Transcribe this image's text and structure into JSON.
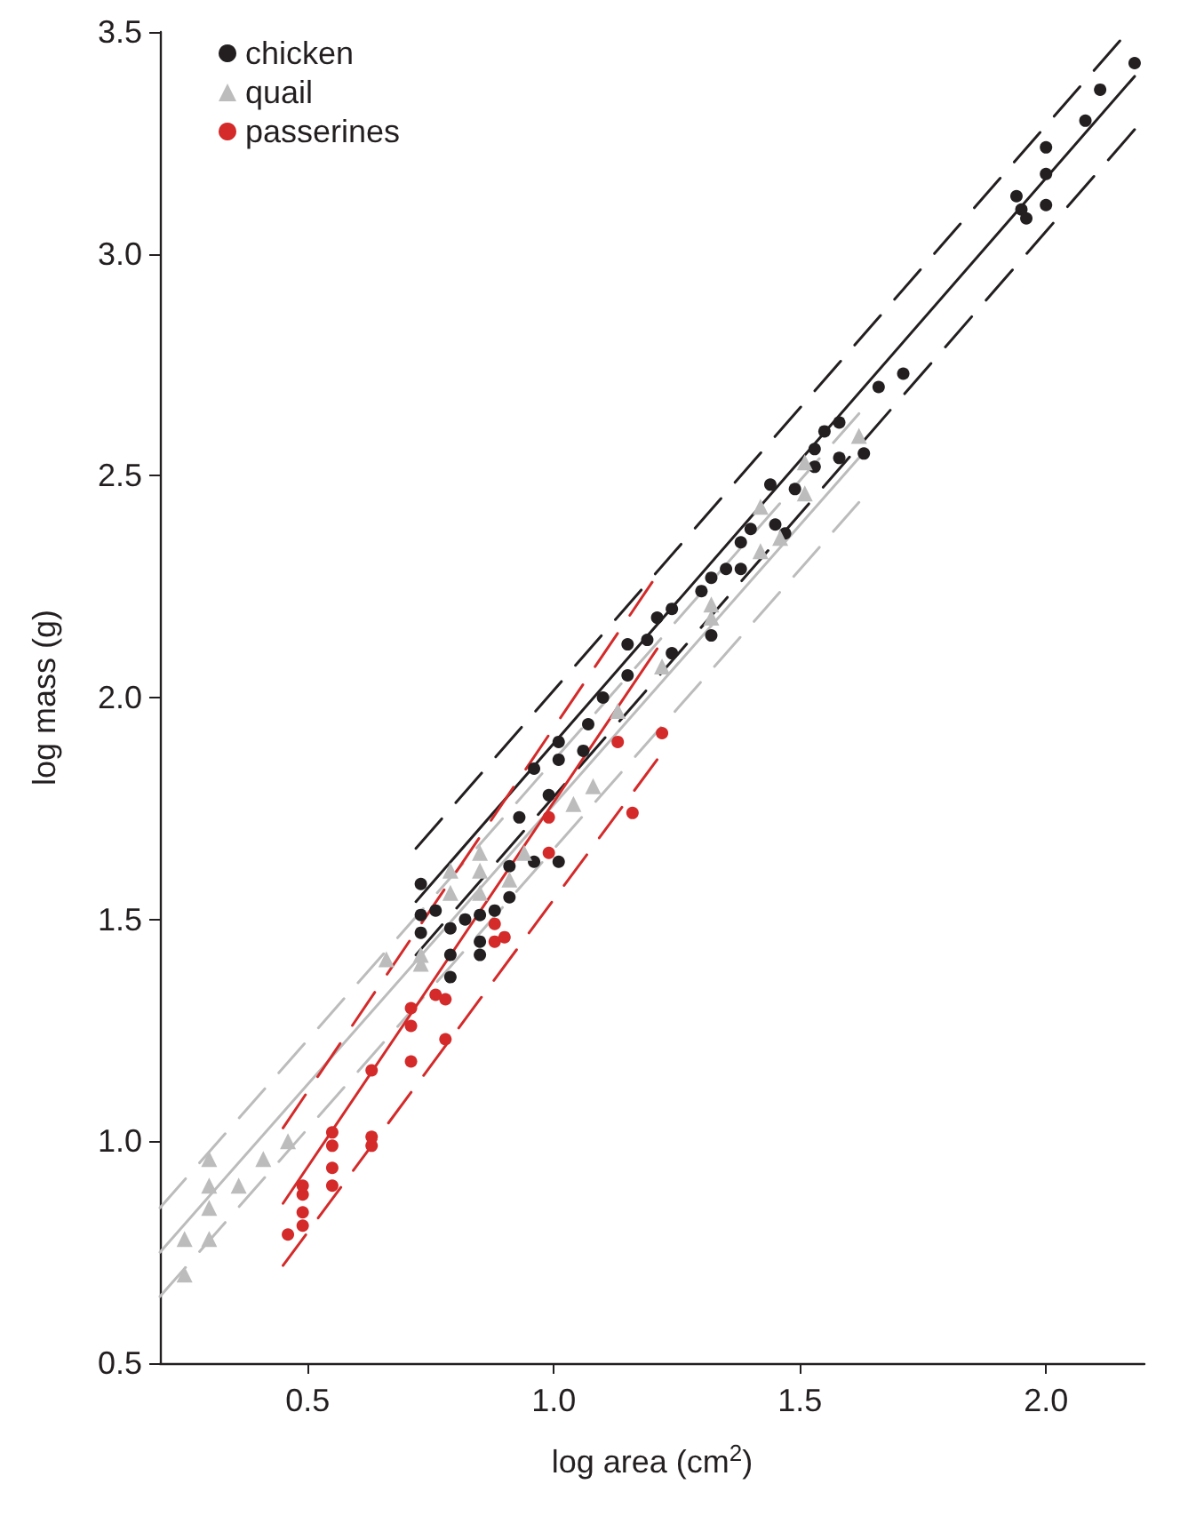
{
  "chart_data": {
    "type": "scatter",
    "xlabel": "log area (cm$^{2}$)",
    "ylabel": "log mass (g)",
    "xlim": [
      0.2,
      2.2
    ],
    "ylim": [
      0.5,
      3.5
    ],
    "xticks": [
      {
        "value": 0.5,
        "label": "0.5"
      },
      {
        "value": 1.0,
        "label": "1.0"
      },
      {
        "value": 1.5,
        "label": "1.5"
      },
      {
        "value": 2.0,
        "label": "2.0"
      }
    ],
    "yticks": [
      {
        "value": 0.5,
        "label": "0.5"
      },
      {
        "value": 1.0,
        "label": "1.0"
      },
      {
        "value": 1.5,
        "label": "1.5"
      },
      {
        "value": 2.0,
        "label": "2.0"
      },
      {
        "value": 2.5,
        "label": "2.5"
      },
      {
        "value": 3.0,
        "label": "3.0"
      },
      {
        "value": 3.5,
        "label": "3.5"
      }
    ],
    "grid": false,
    "legend": "top left",
    "series": [
      {
        "name": "chicken",
        "color": "#231f20",
        "marker": "circle",
        "x": [
          0.73,
          0.73,
          0.73,
          0.76,
          0.79,
          0.79,
          0.79,
          0.82,
          0.85,
          0.85,
          0.85,
          0.88,
          0.91,
          0.91,
          0.93,
          0.96,
          0.96,
          0.99,
          1.01,
          1.01,
          1.06,
          1.01,
          1.07,
          1.1,
          1.15,
          1.15,
          1.19,
          1.21,
          1.24,
          1.24,
          1.3,
          1.32,
          1.32,
          1.35,
          1.38,
          1.38,
          1.4,
          1.45,
          1.47,
          1.44,
          1.49,
          1.53,
          1.53,
          1.55,
          1.58,
          1.58,
          1.63,
          1.66,
          1.71,
          1.94,
          1.95,
          1.96,
          2.0,
          2.0,
          2.0,
          2.08,
          2.11,
          2.18
        ],
        "values": [
          1.58,
          1.51,
          1.47,
          1.52,
          1.48,
          1.42,
          1.37,
          1.5,
          1.51,
          1.45,
          1.42,
          1.52,
          1.55,
          1.62,
          1.73,
          1.84,
          1.63,
          1.78,
          1.63,
          1.86,
          1.88,
          1.9,
          1.94,
          2.0,
          2.05,
          2.12,
          2.13,
          2.18,
          2.2,
          2.1,
          2.24,
          2.27,
          2.14,
          2.29,
          2.35,
          2.29,
          2.38,
          2.39,
          2.37,
          2.48,
          2.47,
          2.56,
          2.52,
          2.6,
          2.62,
          2.54,
          2.55,
          2.7,
          2.73,
          3.13,
          3.1,
          3.08,
          3.24,
          3.18,
          3.11,
          3.3,
          3.37,
          3.43
        ]
      },
      {
        "name": "quail",
        "color": "#bcbcbc",
        "marker": "triangle",
        "x": [
          0.25,
          0.25,
          0.3,
          0.3,
          0.3,
          0.3,
          0.36,
          0.41,
          0.46,
          0.66,
          0.73,
          0.73,
          0.79,
          0.79,
          0.85,
          0.85,
          0.85,
          0.91,
          0.94,
          1.04,
          1.08,
          1.13,
          1.22,
          1.32,
          1.32,
          1.42,
          1.42,
          1.46,
          1.51,
          1.51,
          1.62
        ],
        "values": [
          0.78,
          0.7,
          0.96,
          0.9,
          0.85,
          0.78,
          0.9,
          0.96,
          1.0,
          1.41,
          1.4,
          1.42,
          1.61,
          1.56,
          1.65,
          1.61,
          1.56,
          1.59,
          1.65,
          1.76,
          1.8,
          1.97,
          2.07,
          2.21,
          2.18,
          2.43,
          2.33,
          2.36,
          2.53,
          2.46,
          2.59
        ]
      },
      {
        "name": "passerines",
        "color": "#d42a2a",
        "marker": "circle",
        "x": [
          0.46,
          0.49,
          0.49,
          0.49,
          0.49,
          0.55,
          0.55,
          0.55,
          0.55,
          0.63,
          0.63,
          0.63,
          0.71,
          0.71,
          0.71,
          0.76,
          0.78,
          0.78,
          0.88,
          0.88,
          0.9,
          0.99,
          0.99,
          1.13,
          1.16,
          1.22
        ],
        "values": [
          0.79,
          0.81,
          0.84,
          0.88,
          0.9,
          0.9,
          0.94,
          0.99,
          1.02,
          0.99,
          1.01,
          1.16,
          1.18,
          1.26,
          1.3,
          1.33,
          1.23,
          1.32,
          1.45,
          1.49,
          1.46,
          1.65,
          1.73,
          1.9,
          1.74,
          1.92
        ]
      },
      {
        "type": "line",
        "color": "#231f20",
        "marker": "none",
        "line_style": "solid",
        "x": [
          0.72,
          2.18
        ],
        "values": [
          1.54,
          3.4
        ]
      },
      {
        "type": "line",
        "color": "#231f20",
        "marker": "none",
        "line_style": "dashed",
        "x": [
          0.72,
          2.15
        ],
        "values": [
          1.66,
          3.48
        ]
      },
      {
        "type": "line",
        "color": "#231f20",
        "marker": "none",
        "line_style": "dashed",
        "x": [
          0.72,
          2.18
        ],
        "values": [
          1.42,
          3.28
        ]
      },
      {
        "type": "line",
        "color": "#bcbcbc",
        "marker": "none",
        "line_style": "solid",
        "x": [
          0.2,
          1.62
        ],
        "values": [
          0.75,
          2.54
        ]
      },
      {
        "type": "line",
        "color": "#bcbcbc",
        "marker": "none",
        "line_style": "dashed",
        "x": [
          0.2,
          1.62
        ],
        "values": [
          0.85,
          2.64
        ]
      },
      {
        "type": "line",
        "color": "#bcbcbc",
        "marker": "none",
        "line_style": "dashed",
        "x": [
          0.2,
          1.62
        ],
        "values": [
          0.65,
          2.44
        ]
      },
      {
        "type": "line",
        "color": "#d42a2a",
        "marker": "none",
        "line_style": "solid",
        "x": [
          0.45,
          1.21
        ],
        "values": [
          0.86,
          2.11
        ]
      },
      {
        "type": "line",
        "color": "#d42a2a",
        "marker": "none",
        "line_style": "dashed",
        "x": [
          0.45,
          1.2
        ],
        "values": [
          1.03,
          2.26
        ]
      },
      {
        "type": "line",
        "color": "#d42a2a",
        "marker": "none",
        "line_style": "dashed",
        "x": [
          0.45,
          1.21
        ],
        "values": [
          0.72,
          1.86
        ]
      }
    ]
  }
}
